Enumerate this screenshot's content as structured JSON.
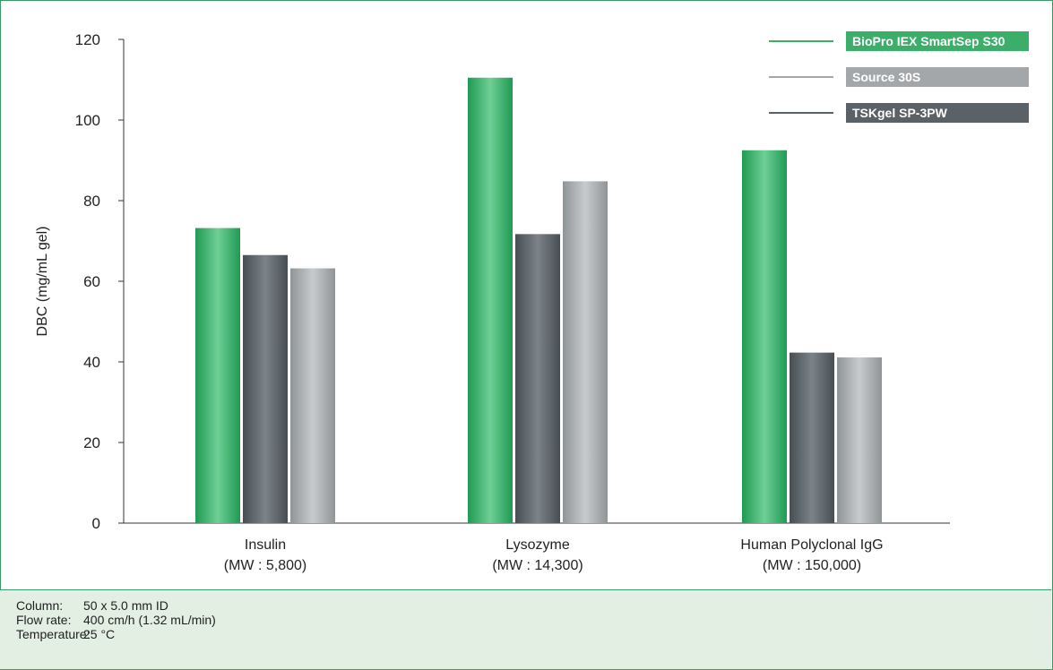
{
  "colors": {
    "green": "#3bae6a",
    "light_gray": "#a3a7aa",
    "dark_gray": "#5a6167",
    "frame": "#3a9a66",
    "notes_bg": "#e2efe2"
  },
  "chart_data": {
    "type": "bar",
    "title": "",
    "xlabel": "",
    "ylabel": "DBC (mg/mL gel)",
    "ylim": [
      0,
      120
    ],
    "yticks": [
      0,
      20,
      40,
      60,
      80,
      100,
      120
    ],
    "grid": false,
    "legend_position": "top-right",
    "categories": [
      {
        "name": "Insulin",
        "sub": "(MW : 5,800)"
      },
      {
        "name": "Lysozyme",
        "sub": "(MW : 14,300)"
      },
      {
        "name": "Human Polyclonal IgG",
        "sub": "(MW : 150,000)"
      }
    ],
    "groups": [
      [
        {
          "series": "BioPro IEX SmartSep S30",
          "value": 73.2
        },
        {
          "series": "TSKgel SP-3PW",
          "value": 66.5
        },
        {
          "series": "Source 30S",
          "value": 63.2
        }
      ],
      [
        {
          "series": "BioPro IEX SmartSep S30",
          "value": 110.5
        },
        {
          "series": "TSKgel SP-3PW",
          "value": 71.7
        },
        {
          "series": "Source 30S",
          "value": 84.8
        }
      ],
      [
        {
          "series": "BioPro IEX SmartSep S30",
          "value": 92.5
        },
        {
          "series": "TSKgel SP-3PW",
          "value": 42.3
        },
        {
          "series": "Source 30S",
          "value": 41.1
        }
      ]
    ],
    "legend": [
      {
        "label": "BioPro IEX SmartSep S30",
        "color_key": "green"
      },
      {
        "label": "Source 30S",
        "color_key": "light_gray"
      },
      {
        "label": "TSKgel SP-3PW",
        "color_key": "dark_gray"
      }
    ]
  },
  "notes": [
    {
      "label": "Column:",
      "value": "50 x 5.0 mm ID"
    },
    {
      "label": "Flow rate:",
      "value": "400 cm/h (1.32 mL/min)"
    },
    {
      "label": "Temperature:",
      "value": "25 °C"
    }
  ]
}
